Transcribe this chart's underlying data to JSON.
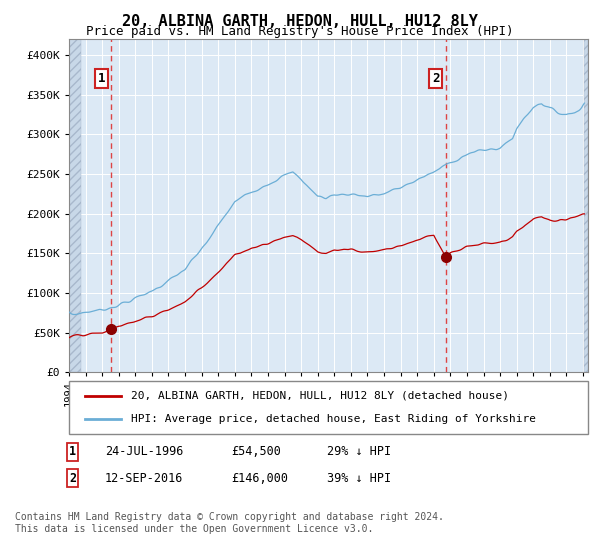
{
  "title": "20, ALBINA GARTH, HEDON, HULL, HU12 8LY",
  "subtitle": "Price paid vs. HM Land Registry's House Price Index (HPI)",
  "title_fontsize": 11,
  "subtitle_fontsize": 9,
  "background_color": "#dce9f5",
  "ylabel_ticks": [
    "£0",
    "£50K",
    "£100K",
    "£150K",
    "£200K",
    "£250K",
    "£300K",
    "£350K",
    "£400K"
  ],
  "ytick_values": [
    0,
    50000,
    100000,
    150000,
    200000,
    250000,
    300000,
    350000,
    400000
  ],
  "ylim": [
    0,
    420000
  ],
  "xlim_start": 1994.0,
  "xlim_end": 2025.3,
  "hpi_line_color": "#6baed6",
  "price_line_color": "#c00000",
  "marker_color": "#8b0000",
  "dashed_line_color": "#dd4444",
  "sale1_x": 1996.56,
  "sale1_y": 54500,
  "sale1_label": "1",
  "sale2_x": 2016.71,
  "sale2_y": 146000,
  "sale2_label": "2",
  "legend_label_red": "20, ALBINA GARTH, HEDON, HULL, HU12 8LY (detached house)",
  "legend_label_blue": "HPI: Average price, detached house, East Riding of Yorkshire",
  "note1_label": "1",
  "note1_date": "24-JUL-1996",
  "note1_price": "£54,500",
  "note1_hpi": "29% ↓ HPI",
  "note2_label": "2",
  "note2_date": "12-SEP-2016",
  "note2_price": "£146,000",
  "note2_hpi": "39% ↓ HPI",
  "copyright": "Contains HM Land Registry data © Crown copyright and database right 2024.\nThis data is licensed under the Open Government Licence v3.0."
}
